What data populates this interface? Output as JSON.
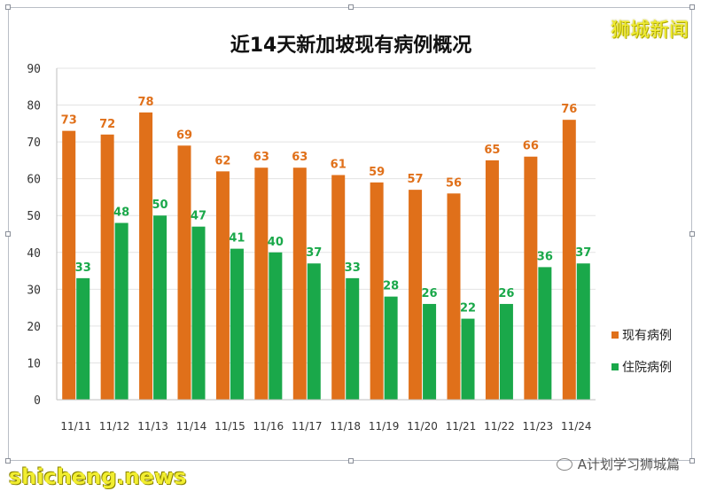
{
  "chart_data": {
    "type": "bar",
    "title": "近14天新加坡现有病例概况",
    "categories": [
      "11/11",
      "11/12",
      "11/13",
      "11/14",
      "11/15",
      "11/16",
      "11/17",
      "11/18",
      "11/19",
      "11/20",
      "11/21",
      "11/22",
      "11/23",
      "11/24"
    ],
    "series": [
      {
        "name": "现有病例",
        "color": "#e0701a",
        "values": [
          73,
          72,
          78,
          69,
          62,
          63,
          63,
          61,
          59,
          57,
          56,
          65,
          66,
          76
        ]
      },
      {
        "name": "住院病例",
        "color": "#1aa84a",
        "values": [
          33,
          48,
          50,
          47,
          41,
          40,
          37,
          33,
          28,
          26,
          22,
          26,
          36,
          37
        ]
      }
    ],
    "ylim": [
      0,
      90
    ],
    "yticks": [
      0,
      10,
      20,
      30,
      40,
      50,
      60,
      70,
      80,
      90
    ],
    "grid": true,
    "legend_position": "right"
  },
  "watermarks": {
    "top_right": "狮城新闻",
    "bottom_left": "shicheng.news",
    "bottom_right": "A计划学习狮城篇"
  }
}
